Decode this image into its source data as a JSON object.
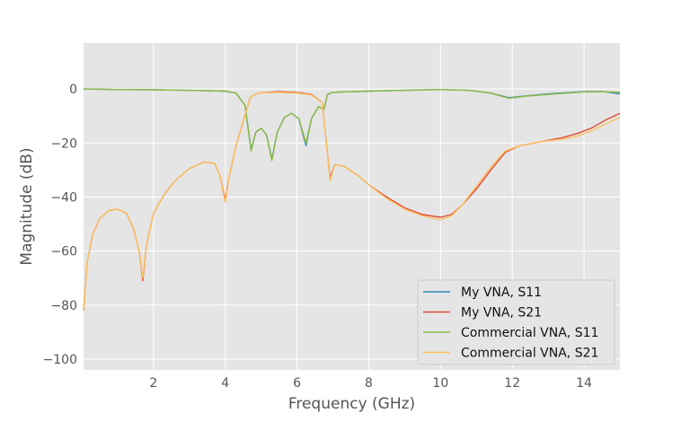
{
  "chart_data": {
    "type": "line",
    "title": "",
    "xlabel": "Frequency (GHz)",
    "ylabel": "Magnitude (dB)",
    "xlim": [
      0.05,
      15
    ],
    "ylim": [
      -104,
      17
    ],
    "xticks": [
      2,
      4,
      6,
      8,
      10,
      12,
      14
    ],
    "yticks": [
      0,
      -20,
      -40,
      -60,
      -80,
      -100
    ],
    "grid": true,
    "legend_position": "lower-right",
    "series": [
      {
        "name": "My VNA, S11",
        "color": "#348abd",
        "points": [
          [
            0.05,
            0
          ],
          [
            1,
            -0.2
          ],
          [
            2,
            -0.3
          ],
          [
            3,
            -0.5
          ],
          [
            4,
            -0.8
          ],
          [
            4.3,
            -1.5
          ],
          [
            4.55,
            -6
          ],
          [
            4.72,
            -22.5
          ],
          [
            4.85,
            -16
          ],
          [
            5,
            -14.5
          ],
          [
            5.15,
            -17
          ],
          [
            5.3,
            -26
          ],
          [
            5.45,
            -16
          ],
          [
            5.65,
            -10.5
          ],
          [
            5.85,
            -9
          ],
          [
            6.05,
            -11
          ],
          [
            6.25,
            -21
          ],
          [
            6.4,
            -11
          ],
          [
            6.6,
            -6.5
          ],
          [
            6.75,
            -7.5
          ],
          [
            6.85,
            -2
          ],
          [
            7,
            -1.2
          ],
          [
            8,
            -0.8
          ],
          [
            9,
            -0.5
          ],
          [
            10,
            -0.2
          ],
          [
            10.8,
            -0.5
          ],
          [
            11.4,
            -1.5
          ],
          [
            11.9,
            -3.2
          ],
          [
            12.4,
            -2.5
          ],
          [
            13.2,
            -1.6
          ],
          [
            14,
            -1
          ],
          [
            14.5,
            -0.9
          ],
          [
            15,
            -1.8
          ]
        ]
      },
      {
        "name": "My VNA, S21",
        "color": "#e24a33",
        "points": [
          [
            0.05,
            -82
          ],
          [
            0.15,
            -64
          ],
          [
            0.3,
            -54
          ],
          [
            0.5,
            -48
          ],
          [
            0.75,
            -45
          ],
          [
            1,
            -44.5
          ],
          [
            1.25,
            -46
          ],
          [
            1.45,
            -52
          ],
          [
            1.6,
            -60
          ],
          [
            1.7,
            -71
          ],
          [
            1.8,
            -58
          ],
          [
            2,
            -46
          ],
          [
            2.3,
            -39
          ],
          [
            2.6,
            -34
          ],
          [
            3,
            -29.5
          ],
          [
            3.4,
            -27
          ],
          [
            3.7,
            -27.5
          ],
          [
            3.85,
            -32
          ],
          [
            4,
            -41
          ],
          [
            4.1,
            -33
          ],
          [
            4.3,
            -21
          ],
          [
            4.5,
            -12
          ],
          [
            4.7,
            -3
          ],
          [
            4.9,
            -1.5
          ],
          [
            5.5,
            -1
          ],
          [
            6,
            -1.3
          ],
          [
            6.4,
            -2
          ],
          [
            6.7,
            -5
          ],
          [
            6.82,
            -20
          ],
          [
            6.92,
            -33
          ],
          [
            7.05,
            -28
          ],
          [
            7.3,
            -28.5
          ],
          [
            7.7,
            -32
          ],
          [
            8,
            -35.5
          ],
          [
            8.5,
            -40
          ],
          [
            9,
            -44
          ],
          [
            9.5,
            -46.5
          ],
          [
            10,
            -47.5
          ],
          [
            10.3,
            -46.5
          ],
          [
            10.6,
            -43
          ],
          [
            11,
            -37
          ],
          [
            11.4,
            -30
          ],
          [
            11.8,
            -23.5
          ],
          [
            12.2,
            -21
          ],
          [
            12.8,
            -19.5
          ],
          [
            13.4,
            -18
          ],
          [
            13.8,
            -16.5
          ],
          [
            14.2,
            -14.5
          ],
          [
            14.6,
            -11.5
          ],
          [
            15,
            -9
          ]
        ]
      },
      {
        "name": "Commercial VNA, S11",
        "color": "#8eba42",
        "points": [
          [
            0.05,
            0
          ],
          [
            1,
            -0.2
          ],
          [
            2,
            -0.3
          ],
          [
            3,
            -0.5
          ],
          [
            4,
            -0.8
          ],
          [
            4.3,
            -1.5
          ],
          [
            4.55,
            -6
          ],
          [
            4.72,
            -23
          ],
          [
            4.85,
            -16
          ],
          [
            5,
            -14.5
          ],
          [
            5.15,
            -17
          ],
          [
            5.3,
            -26.5
          ],
          [
            5.45,
            -16
          ],
          [
            5.65,
            -10.5
          ],
          [
            5.85,
            -9
          ],
          [
            6.05,
            -11
          ],
          [
            6.25,
            -20
          ],
          [
            6.4,
            -11
          ],
          [
            6.6,
            -6.5
          ],
          [
            6.75,
            -7.5
          ],
          [
            6.85,
            -2
          ],
          [
            7,
            -1.2
          ],
          [
            8,
            -0.8
          ],
          [
            9,
            -0.5
          ],
          [
            10,
            -0.2
          ],
          [
            10.8,
            -0.5
          ],
          [
            11.4,
            -1.5
          ],
          [
            11.9,
            -3.4
          ],
          [
            12.4,
            -2.6
          ],
          [
            13.2,
            -1.8
          ],
          [
            14,
            -1.1
          ],
          [
            14.5,
            -1
          ],
          [
            15,
            -1.2
          ]
        ]
      },
      {
        "name": "Commercial VNA, S21",
        "color": "#fbc15e",
        "points": [
          [
            0.05,
            -82
          ],
          [
            0.15,
            -64
          ],
          [
            0.3,
            -54
          ],
          [
            0.5,
            -48
          ],
          [
            0.75,
            -45
          ],
          [
            1,
            -44.5
          ],
          [
            1.25,
            -46
          ],
          [
            1.45,
            -52
          ],
          [
            1.6,
            -60
          ],
          [
            1.7,
            -70
          ],
          [
            1.8,
            -58
          ],
          [
            2,
            -46
          ],
          [
            2.3,
            -39
          ],
          [
            2.6,
            -34
          ],
          [
            3,
            -29.5
          ],
          [
            3.4,
            -27
          ],
          [
            3.7,
            -27.5
          ],
          [
            3.85,
            -32
          ],
          [
            4,
            -42
          ],
          [
            4.1,
            -33
          ],
          [
            4.3,
            -21
          ],
          [
            4.5,
            -12
          ],
          [
            4.7,
            -3
          ],
          [
            4.9,
            -1.5
          ],
          [
            5.5,
            -1.2
          ],
          [
            6,
            -1.5
          ],
          [
            6.4,
            -2.2
          ],
          [
            6.7,
            -5
          ],
          [
            6.82,
            -20
          ],
          [
            6.92,
            -34
          ],
          [
            7.05,
            -28
          ],
          [
            7.3,
            -28.5
          ],
          [
            7.7,
            -32
          ],
          [
            8,
            -35.5
          ],
          [
            8.5,
            -40.5
          ],
          [
            9,
            -44.5
          ],
          [
            9.5,
            -47
          ],
          [
            10,
            -48.5
          ],
          [
            10.3,
            -47
          ],
          [
            10.6,
            -43
          ],
          [
            11,
            -36
          ],
          [
            11.4,
            -29
          ],
          [
            11.8,
            -23
          ],
          [
            12.2,
            -21
          ],
          [
            12.8,
            -19.5
          ],
          [
            13.4,
            -18.5
          ],
          [
            13.8,
            -17.5
          ],
          [
            14.2,
            -15.5
          ],
          [
            14.6,
            -13
          ],
          [
            15,
            -10.5
          ]
        ]
      }
    ]
  }
}
